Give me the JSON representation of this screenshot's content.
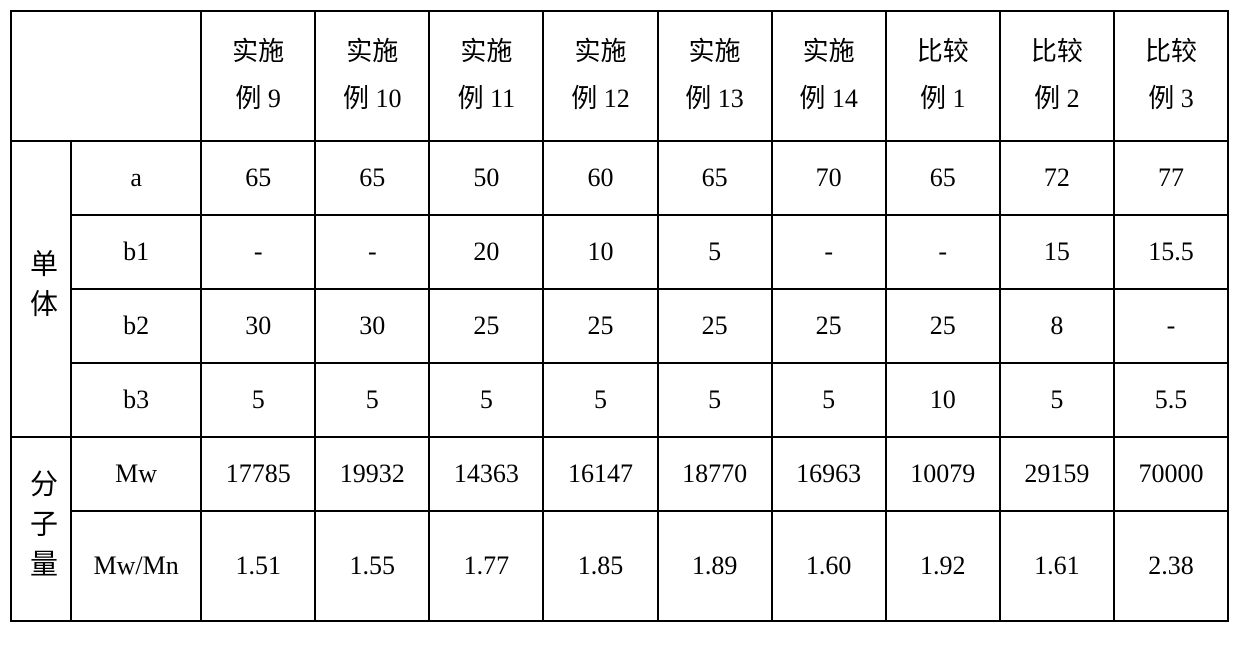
{
  "table": {
    "columns": [
      {
        "label_line1": "实施",
        "label_line2": "例 9"
      },
      {
        "label_line1": "实施",
        "label_line2": "例 10"
      },
      {
        "label_line1": "实施",
        "label_line2": "例 11"
      },
      {
        "label_line1": "实施",
        "label_line2": "例 12"
      },
      {
        "label_line1": "实施",
        "label_line2": "例 13"
      },
      {
        "label_line1": "实施",
        "label_line2": "例 14"
      },
      {
        "label_line1": "比较",
        "label_line2": "例 1"
      },
      {
        "label_line1": "比较",
        "label_line2": "例 2"
      },
      {
        "label_line1": "比较",
        "label_line2": "例 3"
      }
    ],
    "groups": [
      {
        "name": "单体",
        "rows": [
          {
            "label": "a",
            "values": [
              "65",
              "65",
              "50",
              "60",
              "65",
              "70",
              "65",
              "72",
              "77"
            ]
          },
          {
            "label": "b1",
            "values": [
              "-",
              "-",
              "20",
              "10",
              "5",
              "-",
              "-",
              "15",
              "15.5"
            ]
          },
          {
            "label": "b2",
            "values": [
              "30",
              "30",
              "25",
              "25",
              "25",
              "25",
              "25",
              "8",
              "-"
            ]
          },
          {
            "label": "b3",
            "values": [
              "5",
              "5",
              "5",
              "5",
              "5",
              "5",
              "10",
              "5",
              "5.5"
            ]
          }
        ]
      },
      {
        "name": "分子量",
        "rows": [
          {
            "label": "Mw",
            "values": [
              "17785",
              "19932",
              "14363",
              "16147",
              "18770",
              "16963",
              "10079",
              "29159",
              "70000"
            ]
          },
          {
            "label": "Mw/Mn",
            "values": [
              "1.51",
              "1.55",
              "1.77",
              "1.85",
              "1.89",
              "1.60",
              "1.92",
              "1.61",
              "2.38"
            ]
          }
        ]
      }
    ],
    "styling": {
      "border_color": "#000000",
      "border_width": 2,
      "background_color": "#ffffff",
      "text_color": "#000000",
      "data_fontsize": 26,
      "label_fontsize": 28,
      "header_line_height": 1.8
    }
  }
}
